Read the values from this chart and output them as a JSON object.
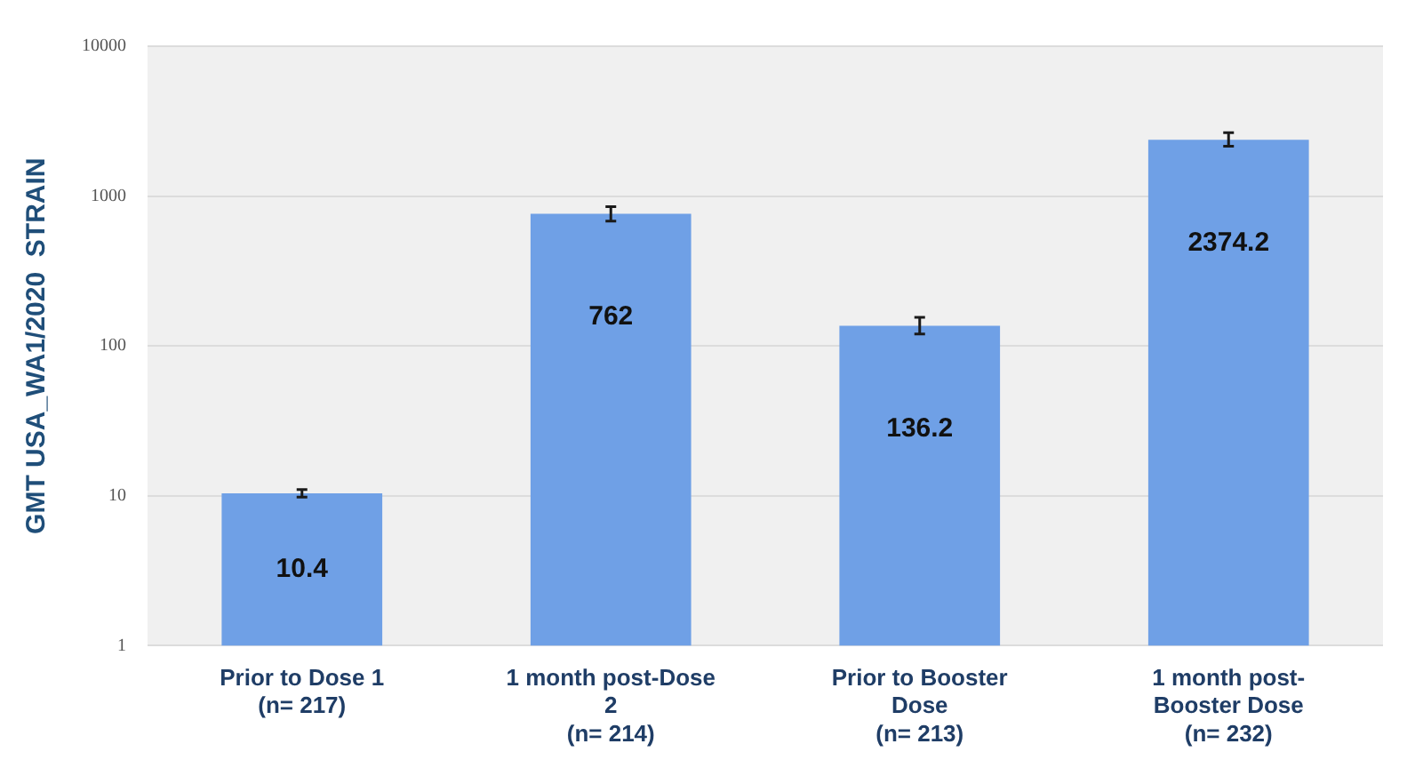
{
  "chart_data": {
    "type": "bar",
    "ylabel": "GMT USA_WA1/2020  STRAIN",
    "categories": [
      "Prior to Dose 1\n(n= 217)",
      "1 month post-Dose\n2\n(n= 214)",
      "Prior to Booster\nDose\n(n= 213)",
      "1 month post-\nBooster Dose\n(n= 232)"
    ],
    "values": [
      10.4,
      762,
      136.2,
      2374.2
    ],
    "errors": [
      [
        9.8,
        11
      ],
      [
        680,
        850
      ],
      [
        120,
        155
      ],
      [
        2150,
        2650
      ]
    ],
    "color": "#6fa0e6",
    "log": true,
    "ylim": [
      1,
      10000
    ],
    "yticks": [
      1,
      10,
      100,
      1000,
      10000
    ],
    "grid": "y",
    "data_labels": true,
    "legend": false
  }
}
